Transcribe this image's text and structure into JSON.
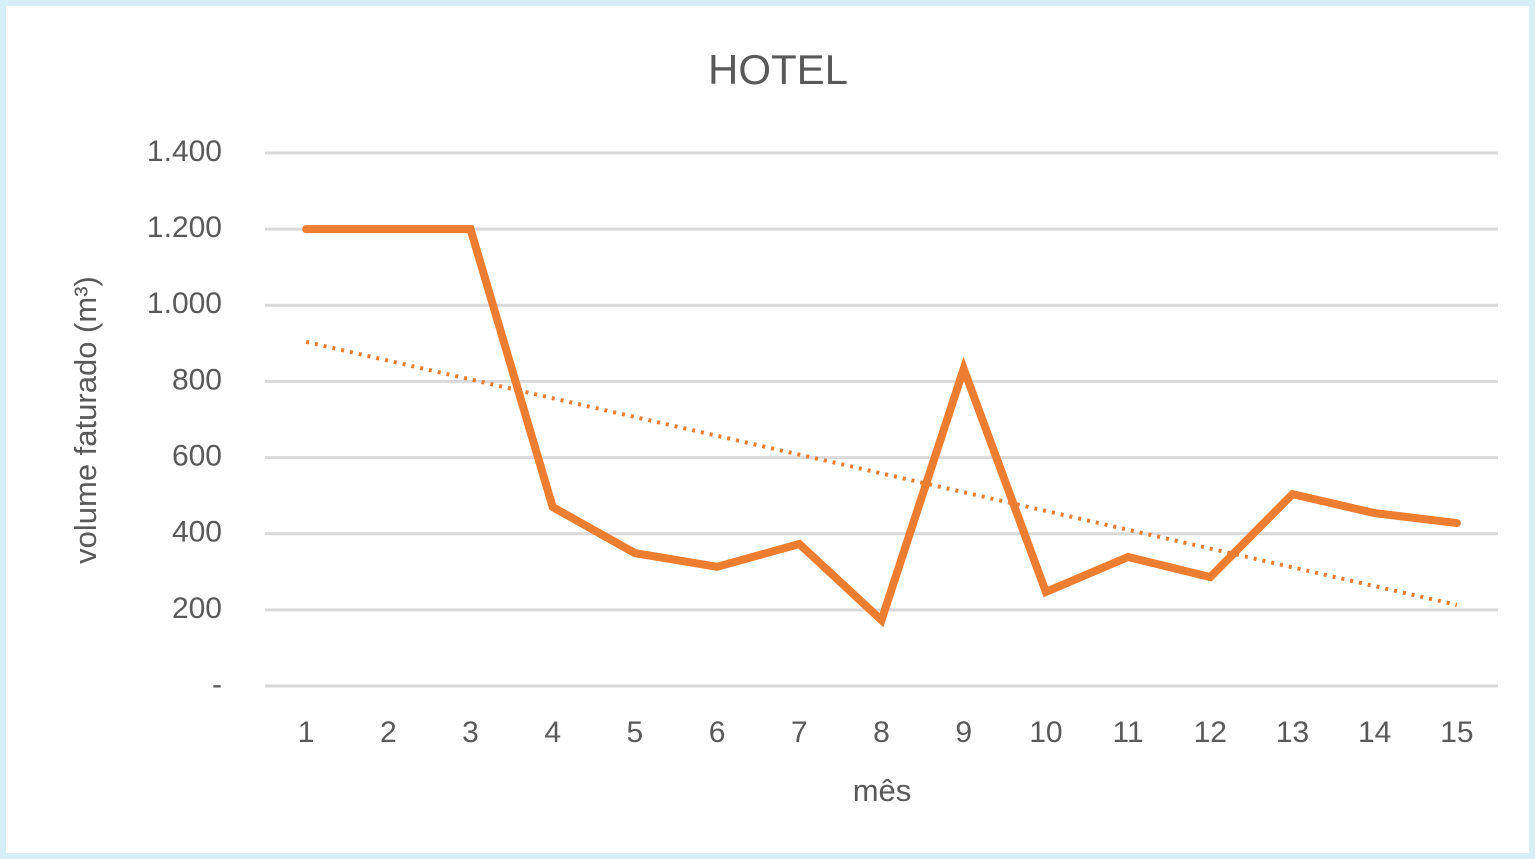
{
  "chart_data": {
    "type": "line",
    "title": "HOTEL",
    "x_label": "mês",
    "y_label": "volume faturado (m³)",
    "categories": [
      "1",
      "2",
      "3",
      "4",
      "5",
      "6",
      "7",
      "8",
      "9",
      "10",
      "11",
      "12",
      "13",
      "14",
      "15"
    ],
    "series": [
      {
        "color": "#ed7d31",
        "values": [
          1200,
          1200,
          1200,
          470,
          349,
          313,
          373,
          173,
          833,
          247,
          339,
          286,
          504,
          454,
          428
        ]
      }
    ],
    "trendline": {
      "color": "#ed7d31",
      "style": "dotted",
      "start": 904,
      "end": 213
    },
    "ylim": [
      0,
      1400
    ],
    "yticks": [
      {
        "value": 0,
        "label": "-"
      },
      200,
      400,
      600,
      800,
      {
        "value": 1000,
        "label": "1.000"
      },
      {
        "value": 1200,
        "label": "1.200"
      },
      {
        "value": 1400,
        "label": "1.400"
      }
    ],
    "grid": true
  }
}
